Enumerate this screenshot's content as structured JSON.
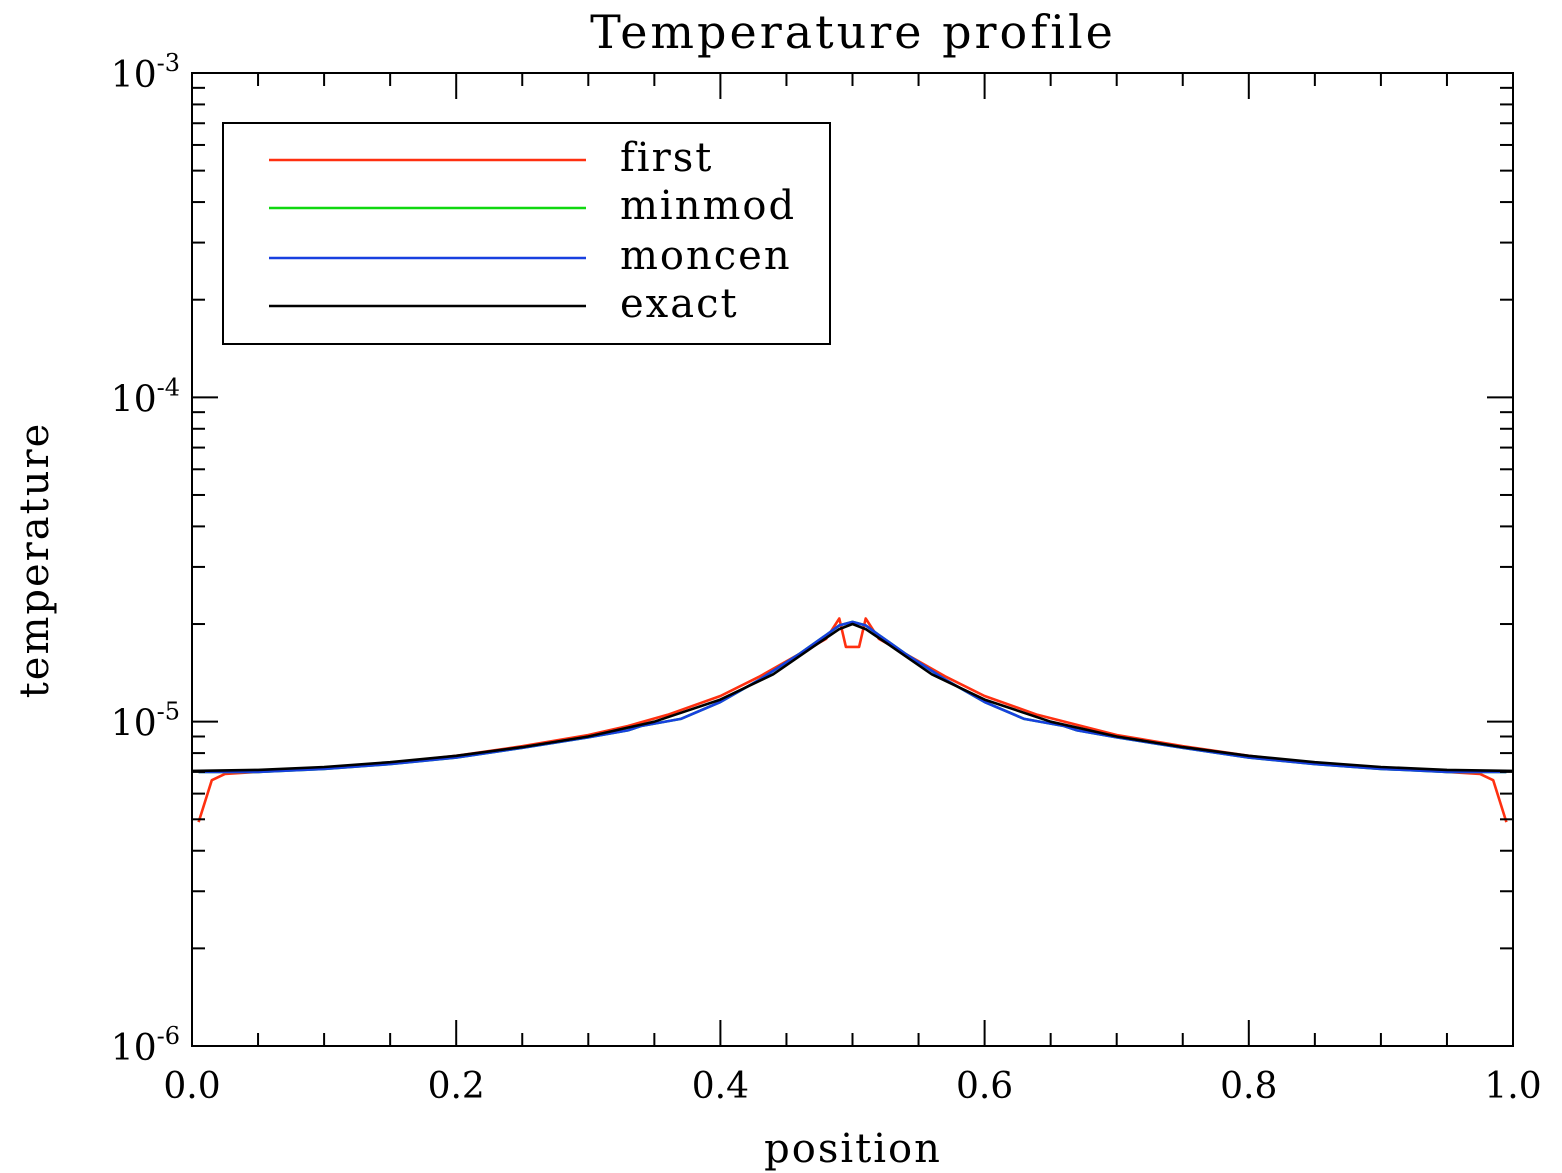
{
  "chart_data": {
    "type": "line",
    "title": "Temperature profile",
    "xlabel": "position",
    "ylabel": "temperature",
    "xlim": [
      0.0,
      1.0
    ],
    "ylim": [
      1e-06,
      0.001
    ],
    "yscale": "log",
    "x_ticks": [
      "0.0",
      "0.2",
      "0.4",
      "0.6",
      "0.8",
      "1.0"
    ],
    "y_ticks": [
      {
        "base": "10",
        "exp": "-6",
        "value": 1e-06
      },
      {
        "base": "10",
        "exp": "-5",
        "value": 1e-05
      },
      {
        "base": "10",
        "exp": "-4",
        "value": 0.0001
      },
      {
        "base": "10",
        "exp": "-3",
        "value": 0.001
      }
    ],
    "legend_position": "top-left",
    "series": [
      {
        "name": "first",
        "color": "#ff3010",
        "x": [
          0.005,
          0.015,
          0.025,
          0.05,
          0.1,
          0.15,
          0.2,
          0.25,
          0.3,
          0.33,
          0.36,
          0.4,
          0.43,
          0.46,
          0.48,
          0.49,
          0.495,
          0.505,
          0.51,
          0.52,
          0.54,
          0.57,
          0.6,
          0.64,
          0.7,
          0.75,
          0.8,
          0.85,
          0.9,
          0.95,
          0.975,
          0.985,
          0.995
        ],
        "y": [
          4.9e-06,
          6.6e-06,
          6.9e-06,
          7e-06,
          7.2e-06,
          7.45e-06,
          7.85e-06,
          8.4e-06,
          9.1e-06,
          9.7e-06,
          1.05e-05,
          1.2e-05,
          1.38e-05,
          1.62e-05,
          1.8e-05,
          2.08e-05,
          1.7e-05,
          1.7e-05,
          2.08e-05,
          1.8e-05,
          1.62e-05,
          1.38e-05,
          1.2e-05,
          1.05e-05,
          9.1e-06,
          8.4e-06,
          7.85e-06,
          7.45e-06,
          7.2e-06,
          7e-06,
          6.9e-06,
          6.6e-06,
          4.9e-06
        ]
      },
      {
        "name": "minmod",
        "color": "#10d810",
        "x": [
          0.005,
          0.05,
          0.1,
          0.15,
          0.2,
          0.25,
          0.3,
          0.33,
          0.34,
          0.37,
          0.4,
          0.43,
          0.46,
          0.48,
          0.49,
          0.5,
          0.51,
          0.52,
          0.54,
          0.57,
          0.6,
          0.63,
          0.66,
          0.67,
          0.7,
          0.75,
          0.8,
          0.85,
          0.9,
          0.95,
          0.995
        ],
        "y": [
          7e-06,
          7e-06,
          7.15e-06,
          7.4e-06,
          7.75e-06,
          8.3e-06,
          8.95e-06,
          9.4e-06,
          9.7e-06,
          1.02e-05,
          1.15e-05,
          1.35e-05,
          1.62e-05,
          1.85e-05,
          1.98e-05,
          2.03e-05,
          1.98e-05,
          1.85e-05,
          1.62e-05,
          1.35e-05,
          1.15e-05,
          1.02e-05,
          9.7e-06,
          9.4e-06,
          8.95e-06,
          8.3e-06,
          7.75e-06,
          7.4e-06,
          7.15e-06,
          7e-06,
          7e-06
        ]
      },
      {
        "name": "moncen",
        "color": "#1840e0",
        "x": [
          0.005,
          0.05,
          0.1,
          0.15,
          0.2,
          0.25,
          0.3,
          0.33,
          0.34,
          0.37,
          0.4,
          0.43,
          0.46,
          0.48,
          0.49,
          0.5,
          0.51,
          0.52,
          0.54,
          0.57,
          0.6,
          0.63,
          0.66,
          0.67,
          0.7,
          0.75,
          0.8,
          0.85,
          0.9,
          0.95,
          0.995
        ],
        "y": [
          7e-06,
          7e-06,
          7.15e-06,
          7.4e-06,
          7.75e-06,
          8.3e-06,
          8.95e-06,
          9.4e-06,
          9.7e-06,
          1.02e-05,
          1.15e-05,
          1.35e-05,
          1.62e-05,
          1.85e-05,
          1.98e-05,
          2.03e-05,
          1.98e-05,
          1.85e-05,
          1.62e-05,
          1.35e-05,
          1.15e-05,
          1.02e-05,
          9.7e-06,
          9.4e-06,
          8.95e-06,
          8.3e-06,
          7.75e-06,
          7.4e-06,
          7.15e-06,
          7e-06,
          7e-06
        ]
      },
      {
        "name": "exact",
        "color": "#000000",
        "x": [
          0.0,
          0.05,
          0.1,
          0.15,
          0.2,
          0.25,
          0.3,
          0.35,
          0.4,
          0.44,
          0.47,
          0.49,
          0.5,
          0.51,
          0.53,
          0.56,
          0.6,
          0.65,
          0.7,
          0.75,
          0.8,
          0.85,
          0.9,
          0.95,
          1.0
        ],
        "y": [
          7.05e-06,
          7.1e-06,
          7.25e-06,
          7.5e-06,
          7.85e-06,
          8.35e-06,
          9e-06,
          1e-05,
          1.17e-05,
          1.4e-05,
          1.7e-05,
          1.93e-05,
          2e-05,
          1.93e-05,
          1.7e-05,
          1.4e-05,
          1.17e-05,
          1e-05,
          9e-06,
          8.35e-06,
          7.85e-06,
          7.5e-06,
          7.25e-06,
          7.1e-06,
          7.05e-06
        ]
      }
    ]
  }
}
